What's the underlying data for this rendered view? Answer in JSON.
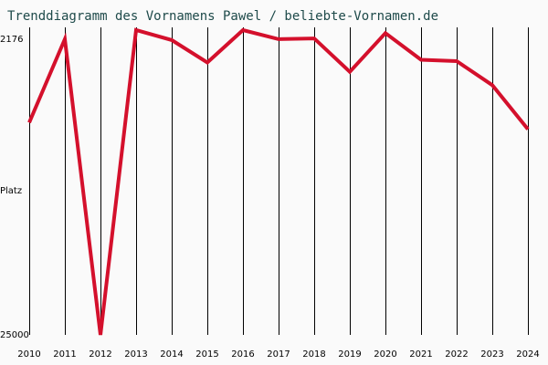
{
  "title": "Trenddiagramm des Vornamens Pawel / beliebte-Vornamen.de",
  "chart_data": {
    "type": "line",
    "title": "Trenddiagramm des Vornamens Pawel / beliebte-Vornamen.de",
    "ylabel": "Platz",
    "y_top_label": "2176",
    "y_bottom_label": "25000",
    "ylim": [
      2176,
      25000
    ],
    "y_inverted": true,
    "grid": {
      "vertical": true,
      "horizontal": false
    },
    "x": [
      2010,
      2011,
      2012,
      2013,
      2014,
      2015,
      2016,
      2017,
      2018,
      2019,
      2020,
      2021,
      2022,
      2023,
      2024
    ],
    "x_labels": [
      "2010",
      "2011",
      "2012",
      "2013",
      "2014",
      "2015",
      "2016",
      "2017",
      "2018",
      "2019",
      "2020",
      "2021",
      "2022",
      "2023",
      "2024"
    ],
    "values": [
      9100,
      2850,
      25000,
      2170,
      2920,
      4600,
      2176,
      2850,
      2800,
      5300,
      2400,
      4400,
      4500,
      6300,
      9600
    ]
  },
  "colors": {
    "line": "#d4102c",
    "grid": "#000000",
    "background": "#fafafa",
    "title": "#1e4a4a"
  }
}
